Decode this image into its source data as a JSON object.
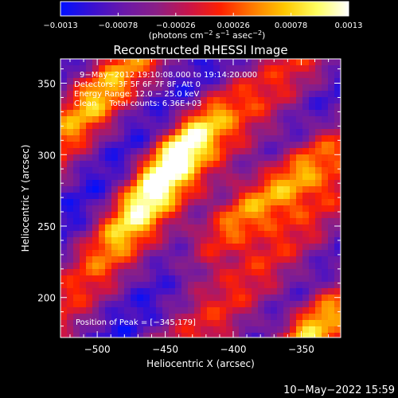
{
  "chart_data": {
    "type": "heatmap",
    "title": "Reconstructed RHESSI Image",
    "xlabel": "Heliocentric X (arcsec)",
    "ylabel": "Heliocentric Y (arcsec)",
    "xlim": [
      -527,
      -321
    ],
    "ylim": [
      172,
      367
    ],
    "x_ticks": [
      -500,
      -450,
      -400,
      -350
    ],
    "y_ticks": [
      200,
      250,
      300,
      350
    ],
    "x_tick_labels": [
      "−500",
      "−450",
      "−400",
      "−350"
    ],
    "y_tick_labels": [
      "200",
      "250",
      "300",
      "350"
    ],
    "colorbar": {
      "min": -0.0013,
      "max": 0.0013,
      "ticks": [
        -0.0013,
        -0.00078,
        -0.00026,
        0.00026,
        0.00078,
        0.0013
      ],
      "tick_labels": [
        "−0.0013",
        "−0.00078",
        "−0.00026",
        "0.00026",
        "0.00078",
        "0.0013"
      ],
      "label_main": "(photons cm",
      "label_sup1": "−2",
      "label_mid1": " s",
      "label_sup2": "−1",
      "label_mid2": " asec",
      "label_sup3": "−2",
      "label_end": ")",
      "colors": [
        "#0010ff",
        "#3a10d0",
        "#6b18a8",
        "#8a1f86",
        "#c8144a",
        "#ff2000",
        "#ff7a00",
        "#ffc800",
        "#ffff60",
        "#ffffff"
      ]
    },
    "annotations": {
      "time": "9−May−2012 19:10:08.000 to 19:14:20.000",
      "detectors": "Detectors: 3F 5F 6F 7F 8F, Att 0",
      "energy": "Energy Range: 12.0 − 25.0 keV",
      "clean": "Clean     Total counts: 6.36E+03",
      "peak": "Position of Peak = [−345,179]"
    },
    "peak": [
      -345,
      179
    ],
    "total_counts": 6360,
    "energy_range_kev": [
      12.0,
      25.0
    ],
    "sources": [
      {
        "x": -440,
        "y": 305,
        "intensity": 1.0
      },
      {
        "x": -400,
        "y": 255,
        "intensity": 0.85
      },
      {
        "x": -468,
        "y": 262,
        "intensity": 0.6
      },
      {
        "x": -350,
        "y": 290,
        "intensity": 0.75
      },
      {
        "x": -345,
        "y": 179,
        "intensity": 1.0
      },
      {
        "x": -500,
        "y": 340,
        "intensity": 0.45
      }
    ]
  },
  "footer": {
    "date": "10−May−2022 15:59"
  }
}
